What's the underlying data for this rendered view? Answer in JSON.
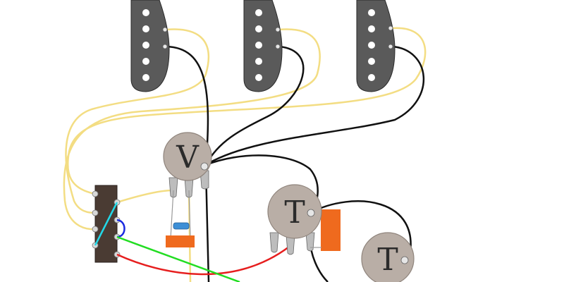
{
  "diagram": {
    "pots": [
      {
        "id": "volume",
        "label": "V"
      },
      {
        "id": "tone-1",
        "label": "T"
      },
      {
        "id": "tone-2",
        "label": "T"
      }
    ],
    "pickups": [
      {
        "id": "neck",
        "pole_count": 6
      },
      {
        "id": "middle",
        "pole_count": 6
      },
      {
        "id": "bridge",
        "pole_count": 6
      }
    ],
    "switch": {
      "positions": 5
    },
    "colors": {
      "pickup_body": "#5a5a5a",
      "pot_body": "#b9aea6",
      "switch_body": "#4a3b33",
      "wire_hot": "#f3dd83",
      "wire_ground": "#111111",
      "wire_red": "#e61e1e",
      "wire_green": "#22dd22",
      "wire_cyan": "#22d8e8",
      "wire_blue": "#1a2adf",
      "capacitor": "#ef6a1e",
      "resistor": "#3d8fd6"
    }
  }
}
